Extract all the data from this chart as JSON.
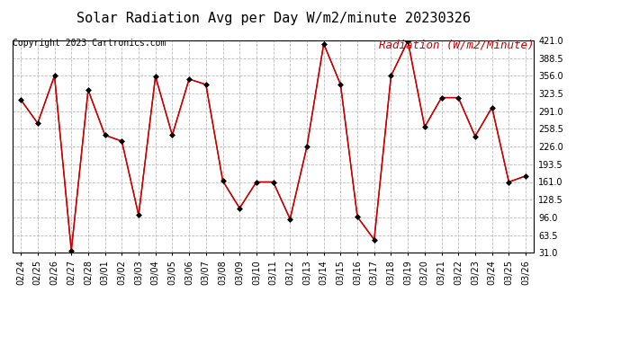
{
  "title": "Solar Radiation Avg per Day W/m2/minute 20230326",
  "copyright": "Copyright 2023 Cartronics.com",
  "legend_label": "Radiation (W/m2/Minute)",
  "dates": [
    "02/24",
    "02/25",
    "02/26",
    "02/27",
    "02/28",
    "03/01",
    "03/02",
    "03/03",
    "03/04",
    "03/05",
    "03/06",
    "03/07",
    "03/08",
    "03/09",
    "03/10",
    "03/11",
    "03/12",
    "03/13",
    "03/14",
    "03/15",
    "03/16",
    "03/17",
    "03/18",
    "03/19",
    "03/20",
    "03/21",
    "03/22",
    "03/23",
    "03/24",
    "03/25",
    "03/26"
  ],
  "values": [
    312,
    269,
    356,
    35,
    330,
    247,
    236,
    100,
    355,
    247,
    350,
    340,
    163,
    113,
    161,
    161,
    93,
    226,
    415,
    340,
    97,
    55,
    356,
    420,
    262,
    316,
    316,
    245,
    298,
    161,
    172
  ],
  "line_color": "#cc0000",
  "marker": "D",
  "marker_size": 3,
  "marker_color": "#000000",
  "background_color": "#ffffff",
  "grid_color": "#bbbbbb",
  "yticks": [
    31.0,
    63.5,
    96.0,
    128.5,
    161.0,
    193.5,
    226.0,
    258.5,
    291.0,
    323.5,
    356.0,
    388.5,
    421.0
  ],
  "ymin": 31.0,
  "ymax": 421.0,
  "title_fontsize": 11,
  "copyright_fontsize": 7,
  "legend_fontsize": 9,
  "tick_fontsize": 7
}
